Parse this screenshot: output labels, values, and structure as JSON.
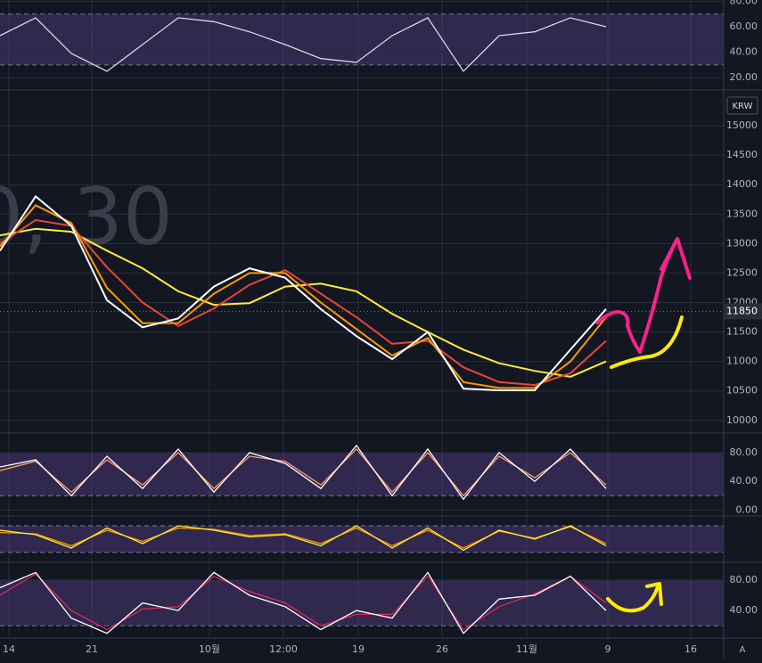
{
  "chart_data": [
    {
      "type": "line",
      "x": [
        0,
        4,
        8,
        12,
        16,
        20,
        24,
        28,
        32,
        36,
        40,
        44,
        48,
        52,
        56,
        60,
        64,
        68
      ],
      "xlim": [
        0,
        81.2
      ],
      "ylim": [
        11,
        81
      ],
      "yticks": [
        {
          "value": 20,
          "label": "20.00"
        },
        {
          "value": 40,
          "label": "40.00"
        },
        {
          "value": 60,
          "label": "60.00"
        },
        {
          "value": 80,
          "label": "80.00"
        }
      ],
      "band": [
        30,
        70
      ],
      "series": [
        {
          "color": "#d8d8e8",
          "values": [
            53,
            67,
            39,
            25,
            46,
            67,
            64,
            56,
            46,
            35,
            32,
            53,
            67,
            25,
            53,
            56,
            67,
            60
          ]
        }
      ]
    },
    {
      "type": "line",
      "currency": "KRW",
      "watermark": "0, 30",
      "x": [
        0,
        4,
        8,
        12,
        16,
        20,
        24,
        28,
        32,
        36,
        40,
        44,
        48,
        52,
        56,
        60,
        64,
        68
      ],
      "xlim": [
        0,
        81.2
      ],
      "ylim": [
        9800,
        15500
      ],
      "yticks": [
        10000,
        10500,
        11000,
        11500,
        12000,
        12500,
        13000,
        13500,
        14000,
        14500,
        15000
      ],
      "last_price": 11850,
      "series": [
        {
          "color": "#ffeb3b",
          "values": [
            13140,
            13250,
            13200,
            12880,
            12580,
            12190,
            11960,
            11990,
            12270,
            12320,
            12190,
            11810,
            11500,
            11200,
            10970,
            10840,
            10740,
            11000
          ]
        },
        {
          "color": "#e8453c",
          "values": [
            13000,
            13400,
            13300,
            12600,
            12000,
            11600,
            11900,
            12300,
            12550,
            12150,
            11750,
            11300,
            11350,
            10900,
            10650,
            10600,
            10800,
            11350
          ]
        },
        {
          "color": "#ff9800",
          "values": [
            12950,
            13650,
            13350,
            12250,
            11650,
            11650,
            12150,
            12500,
            12500,
            12000,
            11550,
            11100,
            11400,
            10650,
            10550,
            10550,
            11000,
            11750
          ]
        },
        {
          "color": "#ffffff",
          "values": [
            12880,
            13800,
            13300,
            12040,
            11580,
            11730,
            12270,
            12580,
            12420,
            11890,
            11430,
            11040,
            11500,
            10540,
            10510,
            10510,
            11200,
            11890
          ]
        }
      ]
    },
    {
      "type": "line",
      "x": [
        0,
        4,
        8,
        12,
        16,
        20,
        24,
        28,
        32,
        36,
        40,
        44,
        48,
        52,
        56,
        60,
        64,
        68
      ],
      "xlim": [
        0,
        81.2
      ],
      "ylim": [
        -7,
        106
      ],
      "yticks": [
        {
          "value": 0,
          "label": "0.00"
        },
        {
          "value": 40,
          "label": "40.00"
        },
        {
          "value": 80,
          "label": "80.00"
        }
      ],
      "band": [
        20,
        80
      ],
      "series": [
        {
          "color": "#ff9e6b",
          "values": [
            55,
            68,
            25,
            70,
            35,
            80,
            30,
            75,
            68,
            35,
            85,
            25,
            80,
            20,
            75,
            45,
            80,
            35
          ]
        },
        {
          "color": "#ffffff",
          "values": [
            60,
            70,
            20,
            75,
            30,
            85,
            25,
            80,
            65,
            30,
            90,
            20,
            85,
            15,
            80,
            40,
            85,
            30
          ]
        }
      ]
    },
    {
      "type": "line",
      "x": [
        0,
        4,
        8,
        12,
        16,
        20,
        24,
        28,
        32,
        36,
        40,
        44,
        48,
        52,
        56,
        60,
        64,
        68
      ],
      "xlim": [
        0,
        81.2
      ],
      "ylim": [
        0,
        100
      ],
      "band": [
        20,
        80
      ],
      "series": [
        {
          "color": "#ff9800",
          "values": [
            65,
            62,
            35,
            70,
            45,
            75,
            72,
            58,
            62,
            40,
            75,
            35,
            70,
            30,
            68,
            52,
            78,
            40
          ]
        },
        {
          "color": "#ffeb3b",
          "values": [
            70,
            60,
            30,
            75,
            40,
            80,
            70,
            55,
            60,
            35,
            80,
            30,
            75,
            25,
            70,
            50,
            80,
            35
          ]
        }
      ]
    },
    {
      "type": "line",
      "x": [
        0,
        4,
        8,
        12,
        16,
        20,
        24,
        28,
        32,
        36,
        40,
        44,
        48,
        52,
        56,
        60,
        64,
        68
      ],
      "xlim": [
        0,
        81.2
      ],
      "ylim": [
        5,
        101
      ],
      "yticks": [
        {
          "value": 40,
          "label": "40.00"
        },
        {
          "value": 80,
          "label": "80.00"
        }
      ],
      "band": [
        20,
        80
      ],
      "xticks": [
        {
          "value": 1,
          "label": "14"
        },
        {
          "value": 10.3,
          "label": "21"
        },
        {
          "value": 23.5,
          "label": "10월"
        },
        {
          "value": 31.8,
          "label": "12:00"
        },
        {
          "value": 40.2,
          "label": "19"
        },
        {
          "value": 49.6,
          "label": "26"
        },
        {
          "value": 59.1,
          "label": "11월"
        },
        {
          "value": 68.2,
          "label": "9"
        },
        {
          "value": 77.5,
          "label": "16"
        }
      ],
      "scale_button": "A",
      "series": [
        {
          "color": "#e0245e",
          "values": [
            60,
            88,
            40,
            15,
            42,
            45,
            85,
            65,
            50,
            20,
            35,
            35,
            85,
            15,
            45,
            62,
            85,
            50
          ]
        },
        {
          "color": "#ffffff",
          "values": [
            70,
            90,
            30,
            10,
            50,
            40,
            90,
            60,
            45,
            15,
            40,
            30,
            90,
            10,
            55,
            60,
            85,
            40
          ]
        }
      ]
    }
  ]
}
